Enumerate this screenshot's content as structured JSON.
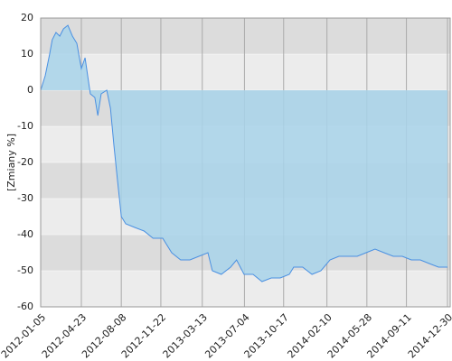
{
  "chart_data": {
    "type": "area",
    "y_label": "[Zmiany %]",
    "x": [
      "2012-01-05",
      "2012-01-17",
      "2012-01-29",
      "2012-02-05",
      "2012-02-15",
      "2012-02-25",
      "2012-03-06",
      "2012-03-18",
      "2012-03-30",
      "2012-04-11",
      "2012-04-23",
      "2012-05-03",
      "2012-05-17",
      "2012-05-29",
      "2012-06-06",
      "2012-06-15",
      "2012-06-30",
      "2012-07-10",
      "2012-07-19",
      "2012-07-29",
      "2012-08-08",
      "2012-08-20",
      "2012-09-13",
      "2012-10-08",
      "2012-11-01",
      "2012-11-27",
      "2012-12-21",
      "2013-01-14",
      "2013-02-08",
      "2013-03-04",
      "2013-03-28",
      "2013-04-09",
      "2013-05-03",
      "2013-05-28",
      "2013-06-13",
      "2013-07-03",
      "2013-07-27",
      "2013-08-20",
      "2013-09-14",
      "2013-10-08",
      "2013-11-01",
      "2013-11-13",
      "2013-12-07",
      "2014-01-01",
      "2014-01-25",
      "2014-02-18",
      "2014-03-14",
      "2014-04-08",
      "2014-05-02",
      "2014-05-26",
      "2014-06-19",
      "2014-07-13",
      "2014-08-07",
      "2014-08-31",
      "2014-09-24",
      "2014-10-18",
      "2014-11-11",
      "2014-12-06",
      "2014-12-30"
    ],
    "values": [
      0,
      4,
      10,
      14,
      16,
      15,
      17,
      18,
      15,
      13,
      6,
      9,
      -1,
      -2,
      -7,
      -1,
      0,
      -5,
      -15,
      -25,
      -35,
      -37,
      -38,
      -39,
      -41,
      -41,
      -45,
      -47,
      -47,
      -46,
      -45,
      -50,
      -51,
      -49,
      -47,
      -51,
      -51,
      -53,
      -52,
      -52,
      -51,
      -49,
      -49,
      -51,
      -50,
      -47,
      -46,
      -46,
      -46,
      -45,
      -44,
      -45,
      -46,
      -46,
      -47,
      -47,
      -48,
      -49,
      -49
    ],
    "color": "#4a90e2",
    "fill": "#a8d4ea",
    "xlim": [
      "2012-01-05",
      "2014-12-30"
    ],
    "xticks": [
      "2012-01-05",
      "2012-04-23",
      "2012-08-08",
      "2012-11-22",
      "2013-03-13",
      "2013-07-04",
      "2013-10-17",
      "2014-02-10",
      "2014-05-28",
      "2014-09-11",
      "2014-12-30"
    ],
    "ylim": [
      -60,
      20
    ],
    "yticks": [
      -60,
      -50,
      -40,
      -30,
      -20,
      -10,
      0,
      10,
      20
    ],
    "grid": true
  }
}
